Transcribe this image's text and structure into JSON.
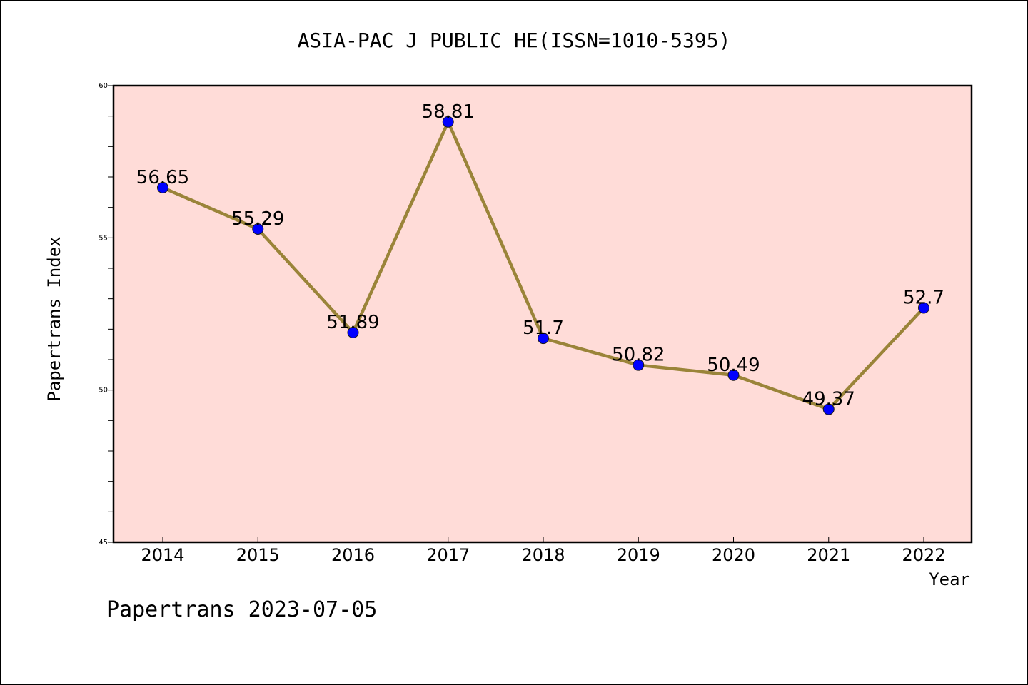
{
  "chart_data": {
    "type": "line",
    "title": "ASIA-PAC J PUBLIC HE(ISSN=1010-5395)",
    "xlabel": "Year",
    "ylabel": "Papertrans Index",
    "categories": [
      "2014",
      "2015",
      "2016",
      "2017",
      "2018",
      "2019",
      "2020",
      "2021",
      "2022"
    ],
    "series": [
      {
        "values": [
          56.65,
          55.29,
          51.89,
          58.81,
          51.7,
          50.82,
          50.49,
          49.37,
          52.7
        ],
        "labels": [
          "56.65",
          "55.29",
          "51.89",
          "58.81",
          "51.7",
          "50.82",
          "50.49",
          "49.37",
          "52.7"
        ]
      }
    ],
    "ylim": [
      45,
      60
    ],
    "yticks": [
      "45",
      "50",
      "55",
      "60"
    ],
    "grid": false,
    "colors": {
      "plot_background": "#ffdcd8",
      "line": "#9a8439",
      "marker": "#0000ff"
    }
  },
  "footer": "Papertrans 2023-07-05"
}
